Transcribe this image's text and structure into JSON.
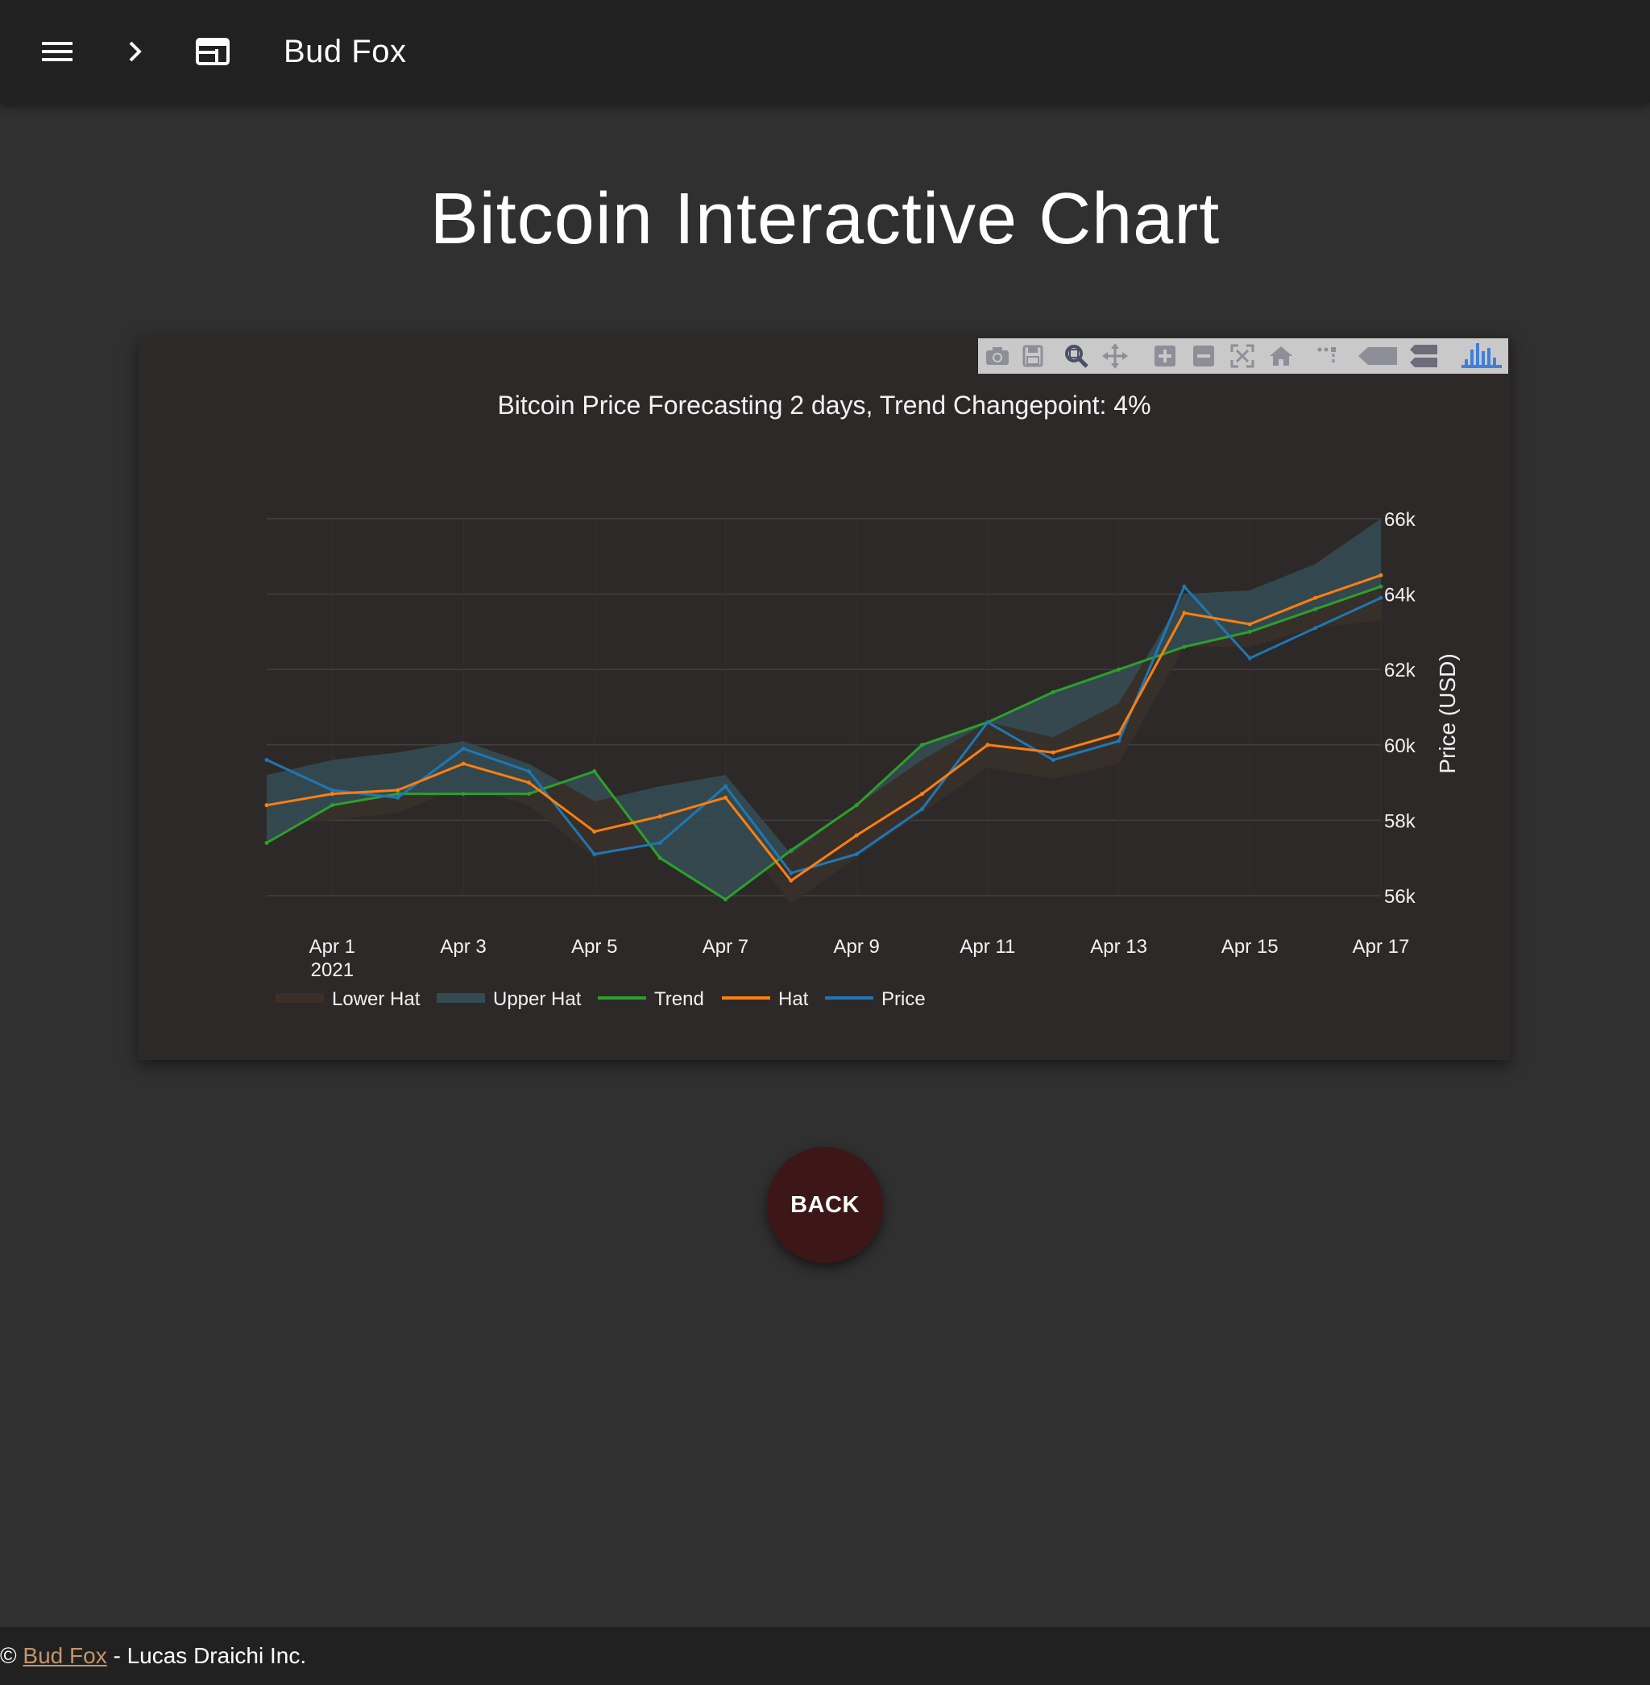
{
  "header": {
    "menu_icon": "menu-icon",
    "chevron_icon": "chevron-right-icon",
    "window_icon": "web-window-icon",
    "title": "Bud Fox"
  },
  "page": {
    "title": "Bitcoin Interactive Chart"
  },
  "modebar": {
    "buttons": [
      "camera-icon",
      "save-icon",
      "zoom-icon",
      "pan-icon",
      "zoom-in-icon",
      "zoom-out-icon",
      "autoscale-icon",
      "reset-axes-icon",
      "spike-lines-icon",
      "hover-closest-icon",
      "hover-compare-icon",
      "plotly-logo-icon"
    ]
  },
  "chart_data": {
    "type": "line",
    "title": "Bitcoin Price Forecasting 2 days, Trend Changepoint: 4%",
    "xlabel": "",
    "ylabel": "Price (USD)",
    "x_ticks": [
      "Apr 1",
      "Apr 3",
      "Apr 5",
      "Apr 7",
      "Apr 9",
      "Apr 11",
      "Apr 13",
      "Apr 15",
      "Apr 17"
    ],
    "x_tick_year": "2021",
    "y_ticks": [
      "56k",
      "58k",
      "60k",
      "62k",
      "64k",
      "66k"
    ],
    "ylim": [
      56000,
      66000
    ],
    "xlim_days": [
      "2021-03-31",
      "2021-04-17"
    ],
    "legend_position": "bottom-left",
    "legend": [
      "Lower Hat",
      "Upper Hat",
      "Trend",
      "Hat",
      "Price"
    ],
    "colors": {
      "lower_hat": "#3a3029",
      "upper_hat": "#344b52",
      "trend": "#2ca02c",
      "hat": "#ff7f0e",
      "price": "#1f77b4"
    },
    "x": [
      "2021-03-31",
      "2021-04-01",
      "2021-04-02",
      "2021-04-03",
      "2021-04-04",
      "2021-04-05",
      "2021-04-06",
      "2021-04-07",
      "2021-04-08",
      "2021-04-09",
      "2021-04-10",
      "2021-04-11",
      "2021-04-12",
      "2021-04-13",
      "2021-04-14",
      "2021-04-15",
      "2021-04-16",
      "2021-04-17"
    ],
    "series": [
      {
        "name": "Trend",
        "values": [
          57400,
          58400,
          58700,
          58700,
          58700,
          59300,
          57000,
          55900,
          57200,
          58400,
          60000,
          60600,
          61400,
          62000,
          62600,
          63000,
          63600,
          64200
        ]
      },
      {
        "name": "Hat",
        "values": [
          58400,
          58700,
          58800,
          59500,
          59000,
          57700,
          58100,
          58600,
          56400,
          57600,
          58700,
          60000,
          59800,
          60300,
          63500,
          63200,
          63900,
          64500
        ]
      },
      {
        "name": "Price",
        "values": [
          59600,
          58800,
          58600,
          59900,
          59300,
          57100,
          57400,
          58900,
          56600,
          57100,
          58300,
          60600,
          59600,
          60100,
          64200,
          62300,
          63100,
          63900
        ]
      },
      {
        "name": "Upper Hat",
        "values": [
          59200,
          59600,
          59800,
          60100,
          59500,
          58500,
          58900,
          59200,
          57100,
          58400,
          59600,
          60600,
          60200,
          61100,
          64000,
          64100,
          64800,
          66000
        ]
      },
      {
        "name": "Lower Hat",
        "values": [
          57900,
          58000,
          58200,
          58900,
          58400,
          57000,
          57500,
          58000,
          55800,
          57000,
          58200,
          59400,
          59100,
          59500,
          62600,
          62600,
          63100,
          63300
        ]
      }
    ]
  },
  "actions": {
    "back_label": "BACK"
  },
  "footer": {
    "copyright": "©",
    "link_label": "Bud Fox",
    "suffix": " - Lucas Draichi Inc."
  }
}
